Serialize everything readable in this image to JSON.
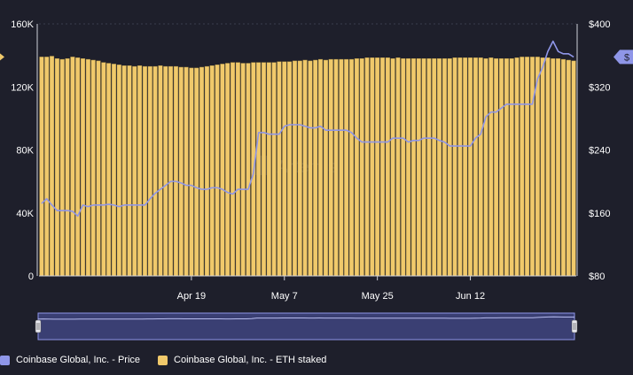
{
  "colors": {
    "background": "#1e1f2b",
    "bars": "#f0c96b",
    "bar_edge": "#b89a4a",
    "price_line": "#8f96e8",
    "grid": "#3a3c4d",
    "axis_text": "#ffffff",
    "navigator_fill": "#3a3f73",
    "navigator_line": "#8f96e8"
  },
  "watermark": "Artemis",
  "price_marker_label": "$",
  "chart_data": {
    "type": "bar",
    "title": "",
    "xlabel": "",
    "ylabel": "",
    "x_tick_labels": [
      "Apr 19",
      "May 7",
      "May 25",
      "Jun 12"
    ],
    "left_axis": {
      "ticks": [
        "0",
        "40K",
        "80K",
        "120K",
        "160K"
      ],
      "ylim": [
        0,
        160000
      ]
    },
    "right_axis": {
      "ticks": [
        "$80",
        "$160",
        "$240",
        "$320",
        "$400"
      ],
      "ylim": [
        80,
        400
      ]
    },
    "grid": true,
    "legend_position": "bottom-left",
    "series": [
      {
        "name": "Coinbase Global, Inc. - Price",
        "type": "line",
        "axis": "right",
        "values": [
          172,
          178,
          170,
          163,
          163,
          163,
          162,
          156,
          170,
          168,
          170,
          170,
          170,
          171,
          170,
          168,
          170,
          170,
          170,
          170,
          170,
          178,
          185,
          190,
          195,
          200,
          200,
          198,
          195,
          195,
          192,
          190,
          190,
          192,
          192,
          190,
          186,
          184,
          190,
          190,
          190,
          210,
          262,
          262,
          260,
          260,
          260,
          270,
          272,
          272,
          272,
          270,
          268,
          268,
          270,
          265,
          265,
          265,
          265,
          265,
          262,
          255,
          250,
          250,
          250,
          250,
          250,
          250,
          255,
          255,
          255,
          250,
          252,
          252,
          255,
          255,
          255,
          252,
          250,
          245,
          245,
          245,
          245,
          245,
          255,
          260,
          282,
          288,
          288,
          293,
          298,
          298,
          298,
          298,
          298,
          298,
          330,
          345,
          365,
          378,
          365,
          362,
          362,
          358
        ]
      },
      {
        "name": "Coinbase Global, Inc. - ETH staked",
        "type": "bar",
        "axis": "left",
        "values": [
          139000,
          139000,
          139500,
          138000,
          137500,
          138000,
          139000,
          138500,
          138000,
          137500,
          137000,
          136500,
          135500,
          135000,
          134500,
          134000,
          133500,
          133500,
          133000,
          133500,
          133000,
          133000,
          133000,
          133500,
          133000,
          133000,
          133000,
          132500,
          132500,
          132000,
          132000,
          132500,
          133000,
          133500,
          134000,
          134500,
          135000,
          135500,
          135500,
          135000,
          135000,
          135500,
          135500,
          135500,
          135500,
          135500,
          136000,
          136000,
          136000,
          136500,
          136500,
          137000,
          136500,
          137000,
          137500,
          137000,
          137500,
          137500,
          137500,
          137500,
          137500,
          138000,
          138000,
          138500,
          138500,
          138500,
          138500,
          138500,
          138000,
          138500,
          138000,
          138000,
          138000,
          138000,
          138000,
          138000,
          138000,
          138000,
          138000,
          138000,
          138500,
          138500,
          138500,
          138500,
          138500,
          138500,
          138000,
          138500,
          138000,
          138000,
          138000,
          138000,
          138500,
          139000,
          139000,
          139000,
          139000,
          138500,
          138500,
          138000,
          138000,
          137500,
          137000,
          136500
        ]
      }
    ]
  },
  "legend": {
    "price_label": "Coinbase Global, Inc. - Price",
    "staked_label": "Coinbase Global, Inc. - ETH staked"
  }
}
